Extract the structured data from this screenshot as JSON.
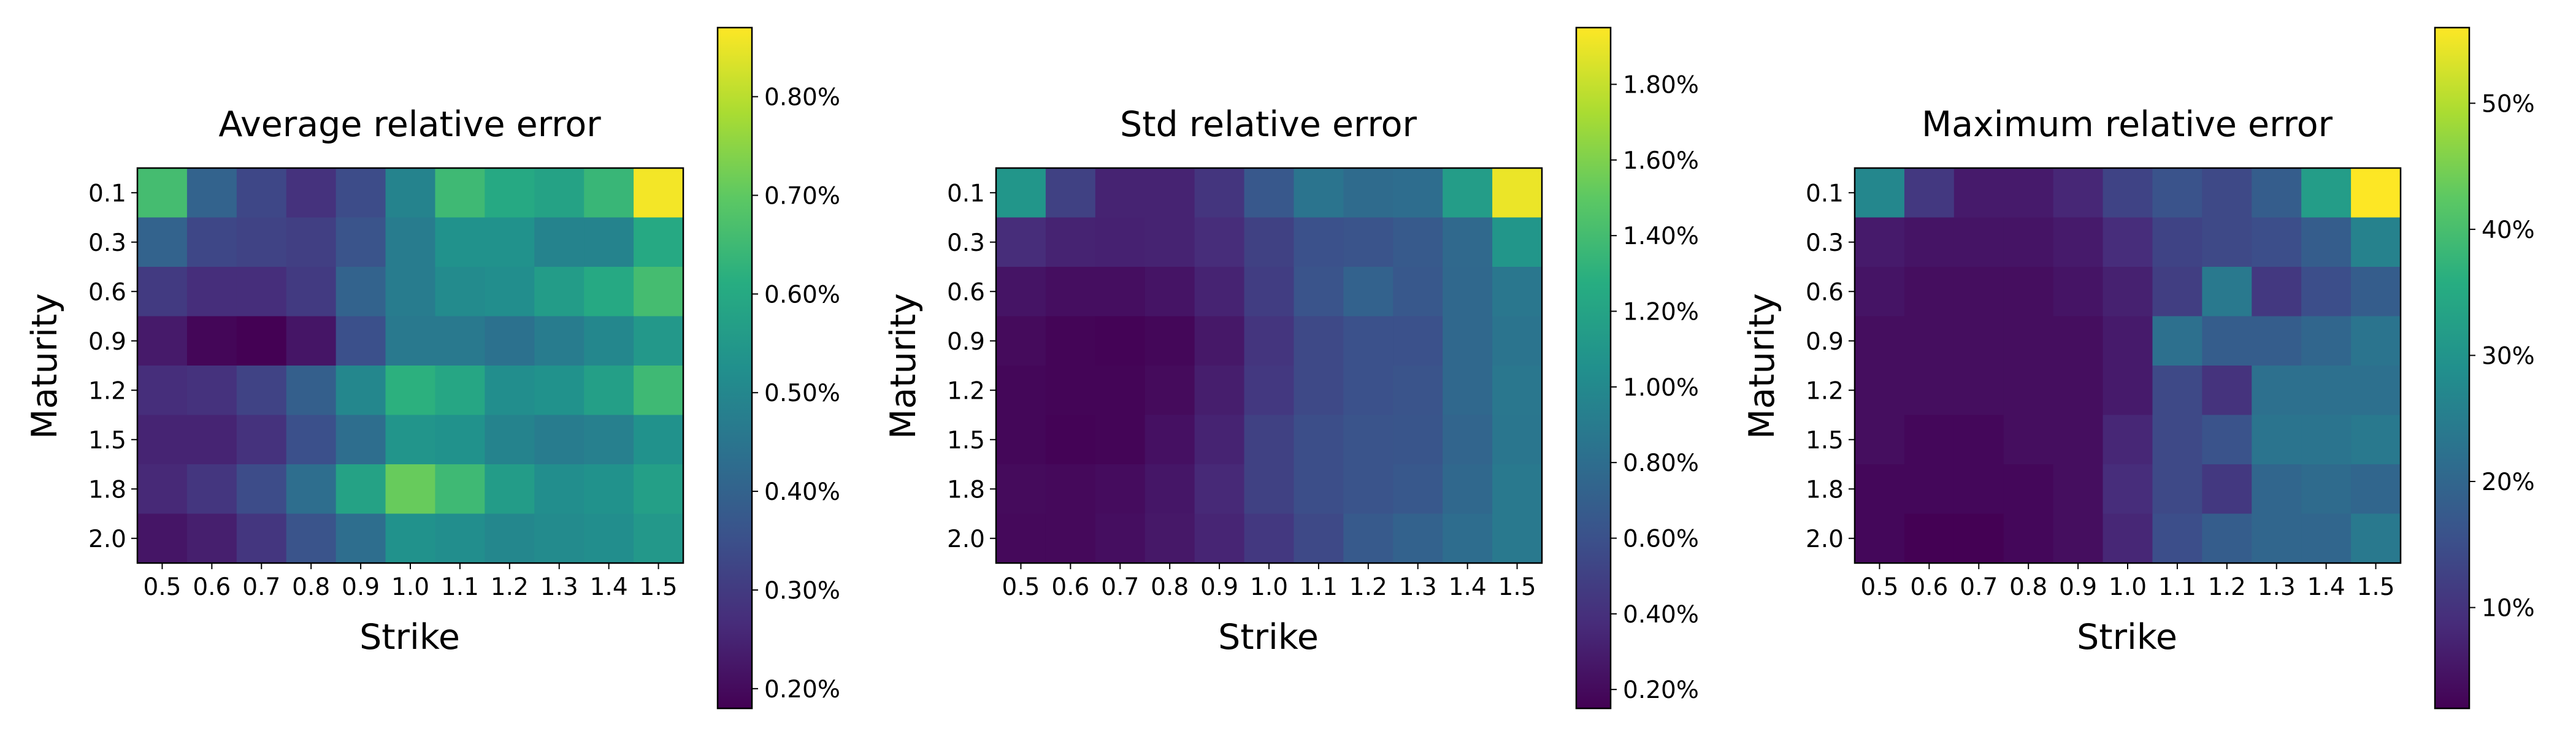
{
  "chart_data": [
    {
      "type": "heatmap",
      "title": "Average relative error",
      "xlabel": "Strike",
      "ylabel": "Maturity",
      "x_ticks": [
        "0.5",
        "0.6",
        "0.7",
        "0.8",
        "0.9",
        "1.0",
        "1.1",
        "1.2",
        "1.3",
        "1.4",
        "1.5"
      ],
      "y_ticks": [
        "0.1",
        "0.3",
        "0.6",
        "0.9",
        "1.2",
        "1.5",
        "1.8",
        "2.0"
      ],
      "colormap": "viridis",
      "vmin": 0.18,
      "vmax": 0.87,
      "colorbar_ticks": [
        0.2,
        0.3,
        0.4,
        0.5,
        0.6,
        0.7,
        0.8
      ],
      "colorbar_tick_labels": [
        "0.20%",
        "0.30%",
        "0.40%",
        "0.50%",
        "0.60%",
        "0.70%",
        "0.80%"
      ],
      "values": [
        [
          0.66,
          0.4,
          0.33,
          0.28,
          0.34,
          0.49,
          0.65,
          0.6,
          0.58,
          0.64,
          0.86
        ],
        [
          0.4,
          0.33,
          0.32,
          0.31,
          0.36,
          0.47,
          0.53,
          0.53,
          0.49,
          0.49,
          0.6
        ],
        [
          0.3,
          0.27,
          0.27,
          0.3,
          0.4,
          0.47,
          0.51,
          0.52,
          0.56,
          0.6,
          0.66
        ],
        [
          0.23,
          0.19,
          0.18,
          0.22,
          0.35,
          0.46,
          0.46,
          0.44,
          0.47,
          0.5,
          0.55
        ],
        [
          0.27,
          0.28,
          0.32,
          0.39,
          0.5,
          0.62,
          0.59,
          0.52,
          0.53,
          0.57,
          0.65
        ],
        [
          0.25,
          0.25,
          0.28,
          0.35,
          0.43,
          0.54,
          0.53,
          0.49,
          0.47,
          0.48,
          0.53
        ],
        [
          0.26,
          0.29,
          0.34,
          0.43,
          0.58,
          0.71,
          0.65,
          0.56,
          0.52,
          0.53,
          0.57
        ],
        [
          0.22,
          0.24,
          0.29,
          0.36,
          0.43,
          0.53,
          0.52,
          0.5,
          0.51,
          0.52,
          0.55
        ]
      ]
    },
    {
      "type": "heatmap",
      "title": "Std relative error",
      "xlabel": "Strike",
      "ylabel": "Maturity",
      "x_ticks": [
        "0.5",
        "0.6",
        "0.7",
        "0.8",
        "0.9",
        "1.0",
        "1.1",
        "1.2",
        "1.3",
        "1.4",
        "1.5"
      ],
      "y_ticks": [
        "0.1",
        "0.3",
        "0.6",
        "0.9",
        "1.2",
        "1.5",
        "1.8",
        "2.0"
      ],
      "colormap": "viridis",
      "vmin": 0.15,
      "vmax": 1.95,
      "colorbar_ticks": [
        0.2,
        0.4,
        0.6,
        0.8,
        1.0,
        1.2,
        1.4,
        1.6,
        1.8
      ],
      "colorbar_tick_labels": [
        "0.20%",
        "0.40%",
        "0.60%",
        "0.80%",
        "1.00%",
        "1.20%",
        "1.40%",
        "1.60%",
        "1.80%"
      ],
      "values": [
        [
          1.1,
          0.5,
          0.33,
          0.33,
          0.43,
          0.65,
          0.85,
          0.78,
          0.8,
          1.15,
          1.9
        ],
        [
          0.38,
          0.33,
          0.32,
          0.33,
          0.38,
          0.5,
          0.6,
          0.62,
          0.66,
          0.77,
          1.1
        ],
        [
          0.25,
          0.22,
          0.22,
          0.25,
          0.33,
          0.48,
          0.62,
          0.72,
          0.65,
          0.76,
          0.87
        ],
        [
          0.2,
          0.17,
          0.16,
          0.18,
          0.27,
          0.43,
          0.55,
          0.6,
          0.6,
          0.76,
          0.85
        ],
        [
          0.18,
          0.17,
          0.17,
          0.2,
          0.3,
          0.45,
          0.55,
          0.6,
          0.62,
          0.76,
          0.87
        ],
        [
          0.18,
          0.16,
          0.17,
          0.23,
          0.33,
          0.5,
          0.58,
          0.62,
          0.63,
          0.74,
          0.86
        ],
        [
          0.2,
          0.19,
          0.21,
          0.26,
          0.36,
          0.5,
          0.58,
          0.62,
          0.65,
          0.76,
          0.88
        ],
        [
          0.19,
          0.19,
          0.22,
          0.27,
          0.34,
          0.45,
          0.55,
          0.66,
          0.72,
          0.8,
          0.88
        ]
      ]
    },
    {
      "type": "heatmap",
      "title": "Maximum relative error",
      "xlabel": "Strike",
      "ylabel": "Maturity",
      "x_ticks": [
        "0.5",
        "0.6",
        "0.7",
        "0.8",
        "0.9",
        "1.0",
        "1.1",
        "1.2",
        "1.3",
        "1.4",
        "1.5"
      ],
      "y_ticks": [
        "0.1",
        "0.3",
        "0.6",
        "0.9",
        "1.2",
        "1.5",
        "1.8",
        "2.0"
      ],
      "colormap": "viridis",
      "vmin": 2,
      "vmax": 56,
      "colorbar_ticks": [
        10,
        20,
        30,
        40,
        50
      ],
      "colorbar_tick_labels": [
        "10%",
        "20%",
        "30%",
        "40%",
        "50%"
      ],
      "values": [
        [
          27,
          11,
          6,
          6,
          8,
          13,
          16,
          14,
          18,
          32,
          56
        ],
        [
          6,
          5,
          5,
          5,
          6,
          9,
          13,
          14,
          15,
          18,
          26
        ],
        [
          5,
          4,
          4,
          4,
          5,
          7,
          12,
          24,
          11,
          15,
          18
        ],
        [
          4,
          4,
          4,
          4,
          4,
          6,
          22,
          18,
          18,
          20,
          23
        ],
        [
          4,
          4,
          4,
          4,
          4,
          6,
          14,
          10,
          22,
          22,
          22
        ],
        [
          4,
          3,
          3,
          4,
          4,
          8,
          14,
          16,
          23,
          23,
          24
        ],
        [
          3,
          3,
          3,
          3,
          4,
          9,
          14,
          11,
          20,
          21,
          20
        ],
        [
          3,
          2,
          2,
          3,
          4,
          8,
          15,
          18,
          20,
          20,
          24
        ]
      ]
    }
  ]
}
